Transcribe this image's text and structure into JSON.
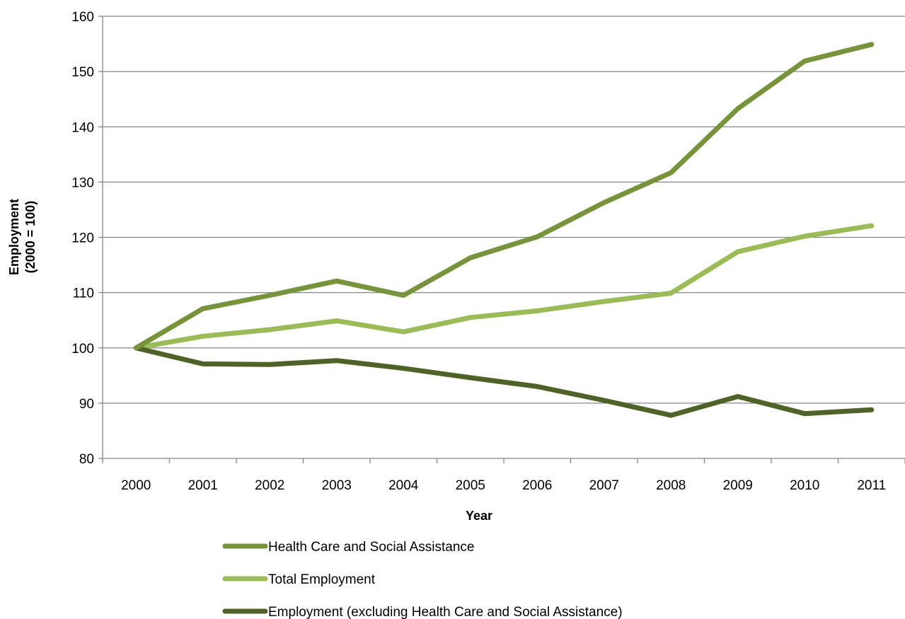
{
  "chart_data": {
    "type": "line",
    "title": "",
    "xlabel": "Year",
    "ylabel_lines": [
      "Employment",
      "(2000 = 100)"
    ],
    "categories": [
      "2000",
      "2001",
      "2002",
      "2003",
      "2004",
      "2005",
      "2006",
      "2007",
      "2008",
      "2009",
      "2010",
      "2011"
    ],
    "yticks": [
      "80",
      "90",
      "100",
      "110",
      "120",
      "130",
      "140",
      "150",
      "160"
    ],
    "ylim": [
      80,
      160
    ],
    "grid": true,
    "legend_position": "bottom",
    "series": [
      {
        "name": "Health Care and Social Assistance",
        "color": "#77933c",
        "values": [
          100,
          107.1,
          109.5,
          112.1,
          109.5,
          116.3,
          120.1,
          126.3,
          131.7,
          143.3,
          151.9,
          154.9
        ]
      },
      {
        "name": "Total Employment",
        "color": "#9bbb59",
        "values": [
          100,
          102.1,
          103.3,
          104.9,
          102.9,
          105.5,
          106.7,
          108.4,
          109.9,
          117.4,
          120.2,
          122.1
        ]
      },
      {
        "name": "Employment (excluding Health Care and Social Assistance)",
        "color": "#4f6228",
        "values": [
          100,
          97.1,
          97.0,
          97.7,
          96.3,
          94.6,
          93.0,
          90.5,
          87.8,
          91.2,
          88.1,
          88.8
        ]
      }
    ]
  }
}
